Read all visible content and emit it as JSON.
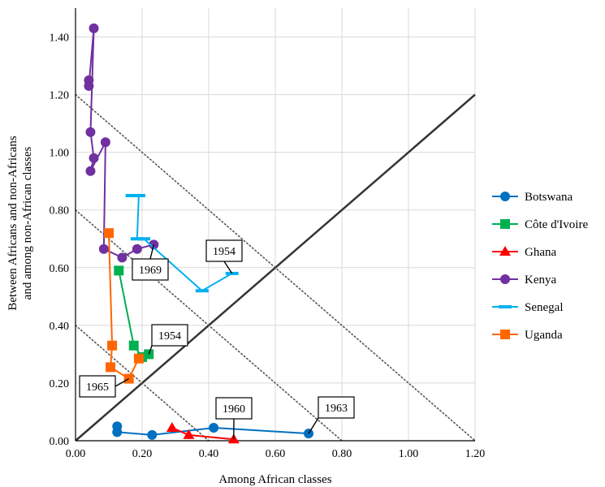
{
  "chart_data": {
    "type": "scatter",
    "title": "",
    "xlabel": "Among African classes",
    "ylabel_line1": "Between Africans and non-Africans",
    "ylabel_line2": "and among non-African classes",
    "xlim": [
      0,
      1.2
    ],
    "ylim": [
      0,
      1.5
    ],
    "xticks": [
      0,
      0.2,
      0.4,
      0.6,
      0.8,
      1.0,
      1.2
    ],
    "xtick_labels": [
      "0.00",
      "0.20",
      "0.40",
      "0.60",
      "0.80",
      "1.00",
      "1.20"
    ],
    "yticks": [
      0,
      0.2,
      0.4,
      0.6,
      0.8,
      1.0,
      1.2,
      1.4
    ],
    "ytick_labels": [
      "0.00",
      "0.20",
      "0.40",
      "0.60",
      "0.80",
      "1.00",
      "1.20",
      "1.40"
    ],
    "grid": true,
    "legend_position": "right",
    "reference_lines": [
      {
        "style": "solid",
        "color": "#333333",
        "from": [
          0,
          0
        ],
        "to": [
          1.2,
          1.2
        ]
      },
      {
        "style": "dotted",
        "color": "#555555",
        "from": [
          0,
          0.4
        ],
        "to": [
          0.4,
          0
        ]
      },
      {
        "style": "dotted",
        "color": "#555555",
        "from": [
          0,
          0.8
        ],
        "to": [
          0.8,
          0
        ]
      },
      {
        "style": "dotted",
        "color": "#555555",
        "from": [
          0,
          1.2
        ],
        "to": [
          1.2,
          0
        ]
      }
    ],
    "series": [
      {
        "name": "Botswana",
        "color": "#0070C0",
        "marker": "circle",
        "points": [
          [
            0.125,
            0.05
          ],
          [
            0.125,
            0.03
          ],
          [
            0.23,
            0.02
          ],
          [
            0.415,
            0.045
          ],
          [
            0.7,
            0.025
          ]
        ]
      },
      {
        "name": "Côte d'Ivoire",
        "color": "#00B050",
        "marker": "square",
        "points": [
          [
            0.13,
            0.59
          ],
          [
            0.175,
            0.33
          ],
          [
            0.2,
            0.29
          ],
          [
            0.22,
            0.3
          ]
        ]
      },
      {
        "name": "Ghana",
        "color": "#FF0000",
        "marker": "triangle",
        "points": [
          [
            0.29,
            0.045
          ],
          [
            0.34,
            0.02
          ],
          [
            0.475,
            0.005
          ]
        ]
      },
      {
        "name": "Kenya",
        "color": "#7030A0",
        "marker": "circle",
        "points": [
          [
            0.04,
            1.25
          ],
          [
            0.04,
            1.23
          ],
          [
            0.055,
            1.43
          ],
          [
            0.045,
            1.07
          ],
          [
            0.055,
            0.98
          ],
          [
            0.045,
            0.935
          ],
          [
            0.09,
            1.035
          ],
          [
            0.085,
            0.665
          ],
          [
            0.14,
            0.635
          ],
          [
            0.185,
            0.665
          ],
          [
            0.235,
            0.68
          ]
        ]
      },
      {
        "name": "Senegal",
        "color": "#00B0F0",
        "marker": "dash",
        "points": [
          [
            0.17,
            0.85
          ],
          [
            0.19,
            0.85
          ],
          [
            0.185,
            0.7
          ],
          [
            0.205,
            0.7
          ],
          [
            0.38,
            0.52
          ],
          [
            0.47,
            0.58
          ]
        ]
      },
      {
        "name": "Uganda",
        "color": "#FF6600",
        "marker": "square",
        "points": [
          [
            0.1,
            0.72
          ],
          [
            0.11,
            0.33
          ],
          [
            0.105,
            0.255
          ],
          [
            0.16,
            0.215
          ],
          [
            0.19,
            0.285
          ]
        ]
      }
    ],
    "annotations": [
      {
        "text": "1954",
        "series": "Senegal",
        "point": [
          0.47,
          0.58
        ]
      },
      {
        "text": "1969",
        "series": "Kenya",
        "point": [
          0.235,
          0.68
        ]
      },
      {
        "text": "1954",
        "series": "Côte d'Ivoire",
        "point": [
          0.22,
          0.3
        ]
      },
      {
        "text": "1965",
        "series": "Uganda",
        "point": [
          0.16,
          0.215
        ]
      },
      {
        "text": "1960",
        "series": "Ghana",
        "point": [
          0.475,
          0.005
        ]
      },
      {
        "text": "1963",
        "series": "Botswana",
        "point": [
          0.7,
          0.025
        ]
      }
    ]
  }
}
